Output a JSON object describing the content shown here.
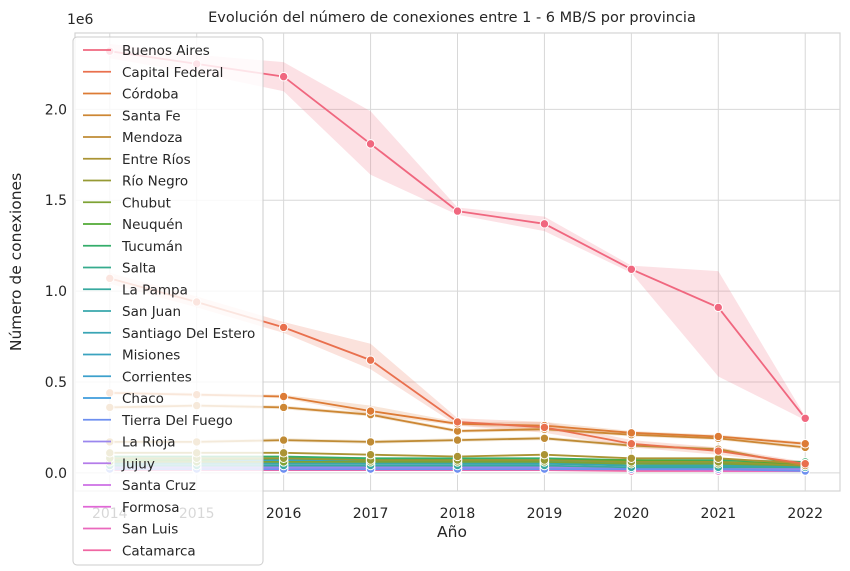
{
  "chart_data": {
    "type": "line",
    "title": "Evolución del número de conexiones entre 1 - 6 MB/S por provincia",
    "xlabel": "Año",
    "ylabel": "Número de conexiones",
    "y_offset_label": "1e6",
    "x": [
      2014,
      2015,
      2016,
      2017,
      2018,
      2019,
      2020,
      2021,
      2022
    ],
    "xlim": [
      2013.6,
      2022.4
    ],
    "ylim": [
      -0.1,
      2.42
    ],
    "y_ticks": [
      0.0,
      0.5,
      1.0,
      1.5,
      2.0
    ],
    "y_tick_labels": [
      "0.0",
      "0.5",
      "1.0",
      "1.5",
      "2.0"
    ],
    "grid": true,
    "legend_placement": "upper-left",
    "units_note": "values in millions of connections (1e6)",
    "series": [
      {
        "name": "Buenos Aires",
        "color": "#f0677f",
        "values": [
          2.32,
          2.25,
          2.18,
          1.81,
          1.44,
          1.37,
          1.12,
          0.91,
          0.3
        ],
        "band_low": [
          2.28,
          2.2,
          2.1,
          1.64,
          1.42,
          1.33,
          1.1,
          0.53,
          0.29
        ],
        "band_high": [
          2.36,
          2.3,
          2.26,
          1.99,
          1.46,
          1.41,
          1.14,
          1.11,
          0.31
        ]
      },
      {
        "name": "Capital Federal",
        "color": "#e9704e",
        "values": [
          1.07,
          0.94,
          0.8,
          0.62,
          0.28,
          0.25,
          0.16,
          0.12,
          0.05
        ],
        "band_low": [
          1.04,
          0.91,
          0.77,
          0.57,
          0.26,
          0.22,
          0.14,
          0.1,
          0.04
        ],
        "band_high": [
          1.1,
          0.97,
          0.83,
          0.71,
          0.3,
          0.28,
          0.18,
          0.14,
          0.06
        ]
      },
      {
        "name": "Córdoba",
        "color": "#dd7b35",
        "values": [
          0.44,
          0.43,
          0.42,
          0.34,
          0.27,
          0.26,
          0.22,
          0.2,
          0.16
        ],
        "band_low": [
          0.43,
          0.42,
          0.41,
          0.32,
          0.26,
          0.24,
          0.21,
          0.19,
          0.15
        ],
        "band_high": [
          0.45,
          0.44,
          0.43,
          0.37,
          0.28,
          0.28,
          0.23,
          0.21,
          0.17
        ]
      },
      {
        "name": "Santa Fe",
        "color": "#cd8734",
        "values": [
          0.36,
          0.37,
          0.36,
          0.32,
          0.23,
          0.24,
          0.21,
          0.19,
          0.14
        ],
        "band_low": [
          0.35,
          0.36,
          0.35,
          0.31,
          0.22,
          0.23,
          0.2,
          0.18,
          0.13
        ],
        "band_high": [
          0.37,
          0.38,
          0.37,
          0.33,
          0.24,
          0.25,
          0.22,
          0.2,
          0.15
        ]
      },
      {
        "name": "Mendoza",
        "color": "#bf8b35",
        "values": [
          0.17,
          0.17,
          0.18,
          0.17,
          0.18,
          0.19,
          0.15,
          0.13,
          0.04
        ],
        "band_low": [
          0.16,
          0.16,
          0.17,
          0.16,
          0.17,
          0.18,
          0.14,
          0.12,
          0.035
        ],
        "band_high": [
          0.18,
          0.18,
          0.19,
          0.18,
          0.19,
          0.2,
          0.16,
          0.14,
          0.045
        ]
      },
      {
        "name": "Entre Ríos",
        "color": "#ab9434",
        "values": [
          0.11,
          0.11,
          0.11,
          0.1,
          0.09,
          0.1,
          0.08,
          0.08,
          0.05
        ]
      },
      {
        "name": "Río Negro",
        "color": "#969a34",
        "values": [
          0.08,
          0.08,
          0.08,
          0.07,
          0.07,
          0.07,
          0.06,
          0.06,
          0.04
        ]
      },
      {
        "name": "Chubut",
        "color": "#7ea234",
        "values": [
          0.06,
          0.06,
          0.06,
          0.06,
          0.06,
          0.06,
          0.05,
          0.05,
          0.04
        ]
      },
      {
        "name": "Neuquén",
        "color": "#50a934",
        "values": [
          0.07,
          0.07,
          0.08,
          0.07,
          0.07,
          0.07,
          0.07,
          0.06,
          0.05
        ]
      },
      {
        "name": "Tucumán",
        "color": "#34ad6a",
        "values": [
          0.09,
          0.09,
          0.09,
          0.08,
          0.08,
          0.08,
          0.07,
          0.07,
          0.06
        ]
      },
      {
        "name": "Salta",
        "color": "#36ab8e",
        "values": [
          0.08,
          0.08,
          0.08,
          0.08,
          0.07,
          0.07,
          0.06,
          0.06,
          0.05
        ]
      },
      {
        "name": "La Pampa",
        "color": "#37a99f",
        "values": [
          0.04,
          0.04,
          0.04,
          0.04,
          0.04,
          0.04,
          0.03,
          0.03,
          0.03
        ]
      },
      {
        "name": "San Juan",
        "color": "#38a7ab",
        "values": [
          0.05,
          0.05,
          0.05,
          0.05,
          0.05,
          0.05,
          0.04,
          0.04,
          0.04
        ]
      },
      {
        "name": "Santiago Del Estero",
        "color": "#39a5b5",
        "values": [
          0.06,
          0.06,
          0.06,
          0.06,
          0.05,
          0.05,
          0.05,
          0.05,
          0.04
        ]
      },
      {
        "name": "Misiones",
        "color": "#3aa3bf",
        "values": [
          0.07,
          0.07,
          0.07,
          0.07,
          0.06,
          0.06,
          0.05,
          0.05,
          0.05
        ]
      },
      {
        "name": "Corrientes",
        "color": "#3ca0cc",
        "values": [
          0.06,
          0.06,
          0.06,
          0.06,
          0.06,
          0.06,
          0.05,
          0.05,
          0.04
        ]
      },
      {
        "name": "Chaco",
        "color": "#3e9bdc",
        "values": [
          0.06,
          0.06,
          0.06,
          0.06,
          0.05,
          0.05,
          0.05,
          0.04,
          0.04
        ]
      },
      {
        "name": "Tierra Del Fuego",
        "color": "#6d8ff0",
        "values": [
          0.02,
          0.02,
          0.02,
          0.02,
          0.02,
          0.02,
          0.02,
          0.02,
          0.01
        ]
      },
      {
        "name": "La Rioja",
        "color": "#9a86ee",
        "values": [
          0.03,
          0.03,
          0.03,
          0.03,
          0.03,
          0.03,
          0.02,
          0.02,
          0.02
        ]
      },
      {
        "name": "Jujuy",
        "color": "#b47ce9",
        "values": [
          0.04,
          0.04,
          0.04,
          0.04,
          0.04,
          0.04,
          0.03,
          0.03,
          0.03
        ]
      },
      {
        "name": "Santa Cruz",
        "color": "#cd6fe5",
        "values": [
          0.03,
          0.03,
          0.03,
          0.03,
          0.03,
          0.03,
          0.02,
          0.02,
          0.02
        ]
      },
      {
        "name": "Formosa",
        "color": "#e067d6",
        "values": [
          0.03,
          0.03,
          0.03,
          0.03,
          0.03,
          0.03,
          0.02,
          0.02,
          0.02
        ]
      },
      {
        "name": "San Luis",
        "color": "#ea68bd",
        "values": [
          0.02,
          0.02,
          0.02,
          0.02,
          0.02,
          0.02,
          0.02,
          0.01,
          0.01
        ]
      },
      {
        "name": "Catamarca",
        "color": "#f066a2",
        "values": [
          0.015,
          0.015,
          0.015,
          0.015,
          0.015,
          0.015,
          0.01,
          0.01,
          0.01
        ]
      }
    ]
  }
}
